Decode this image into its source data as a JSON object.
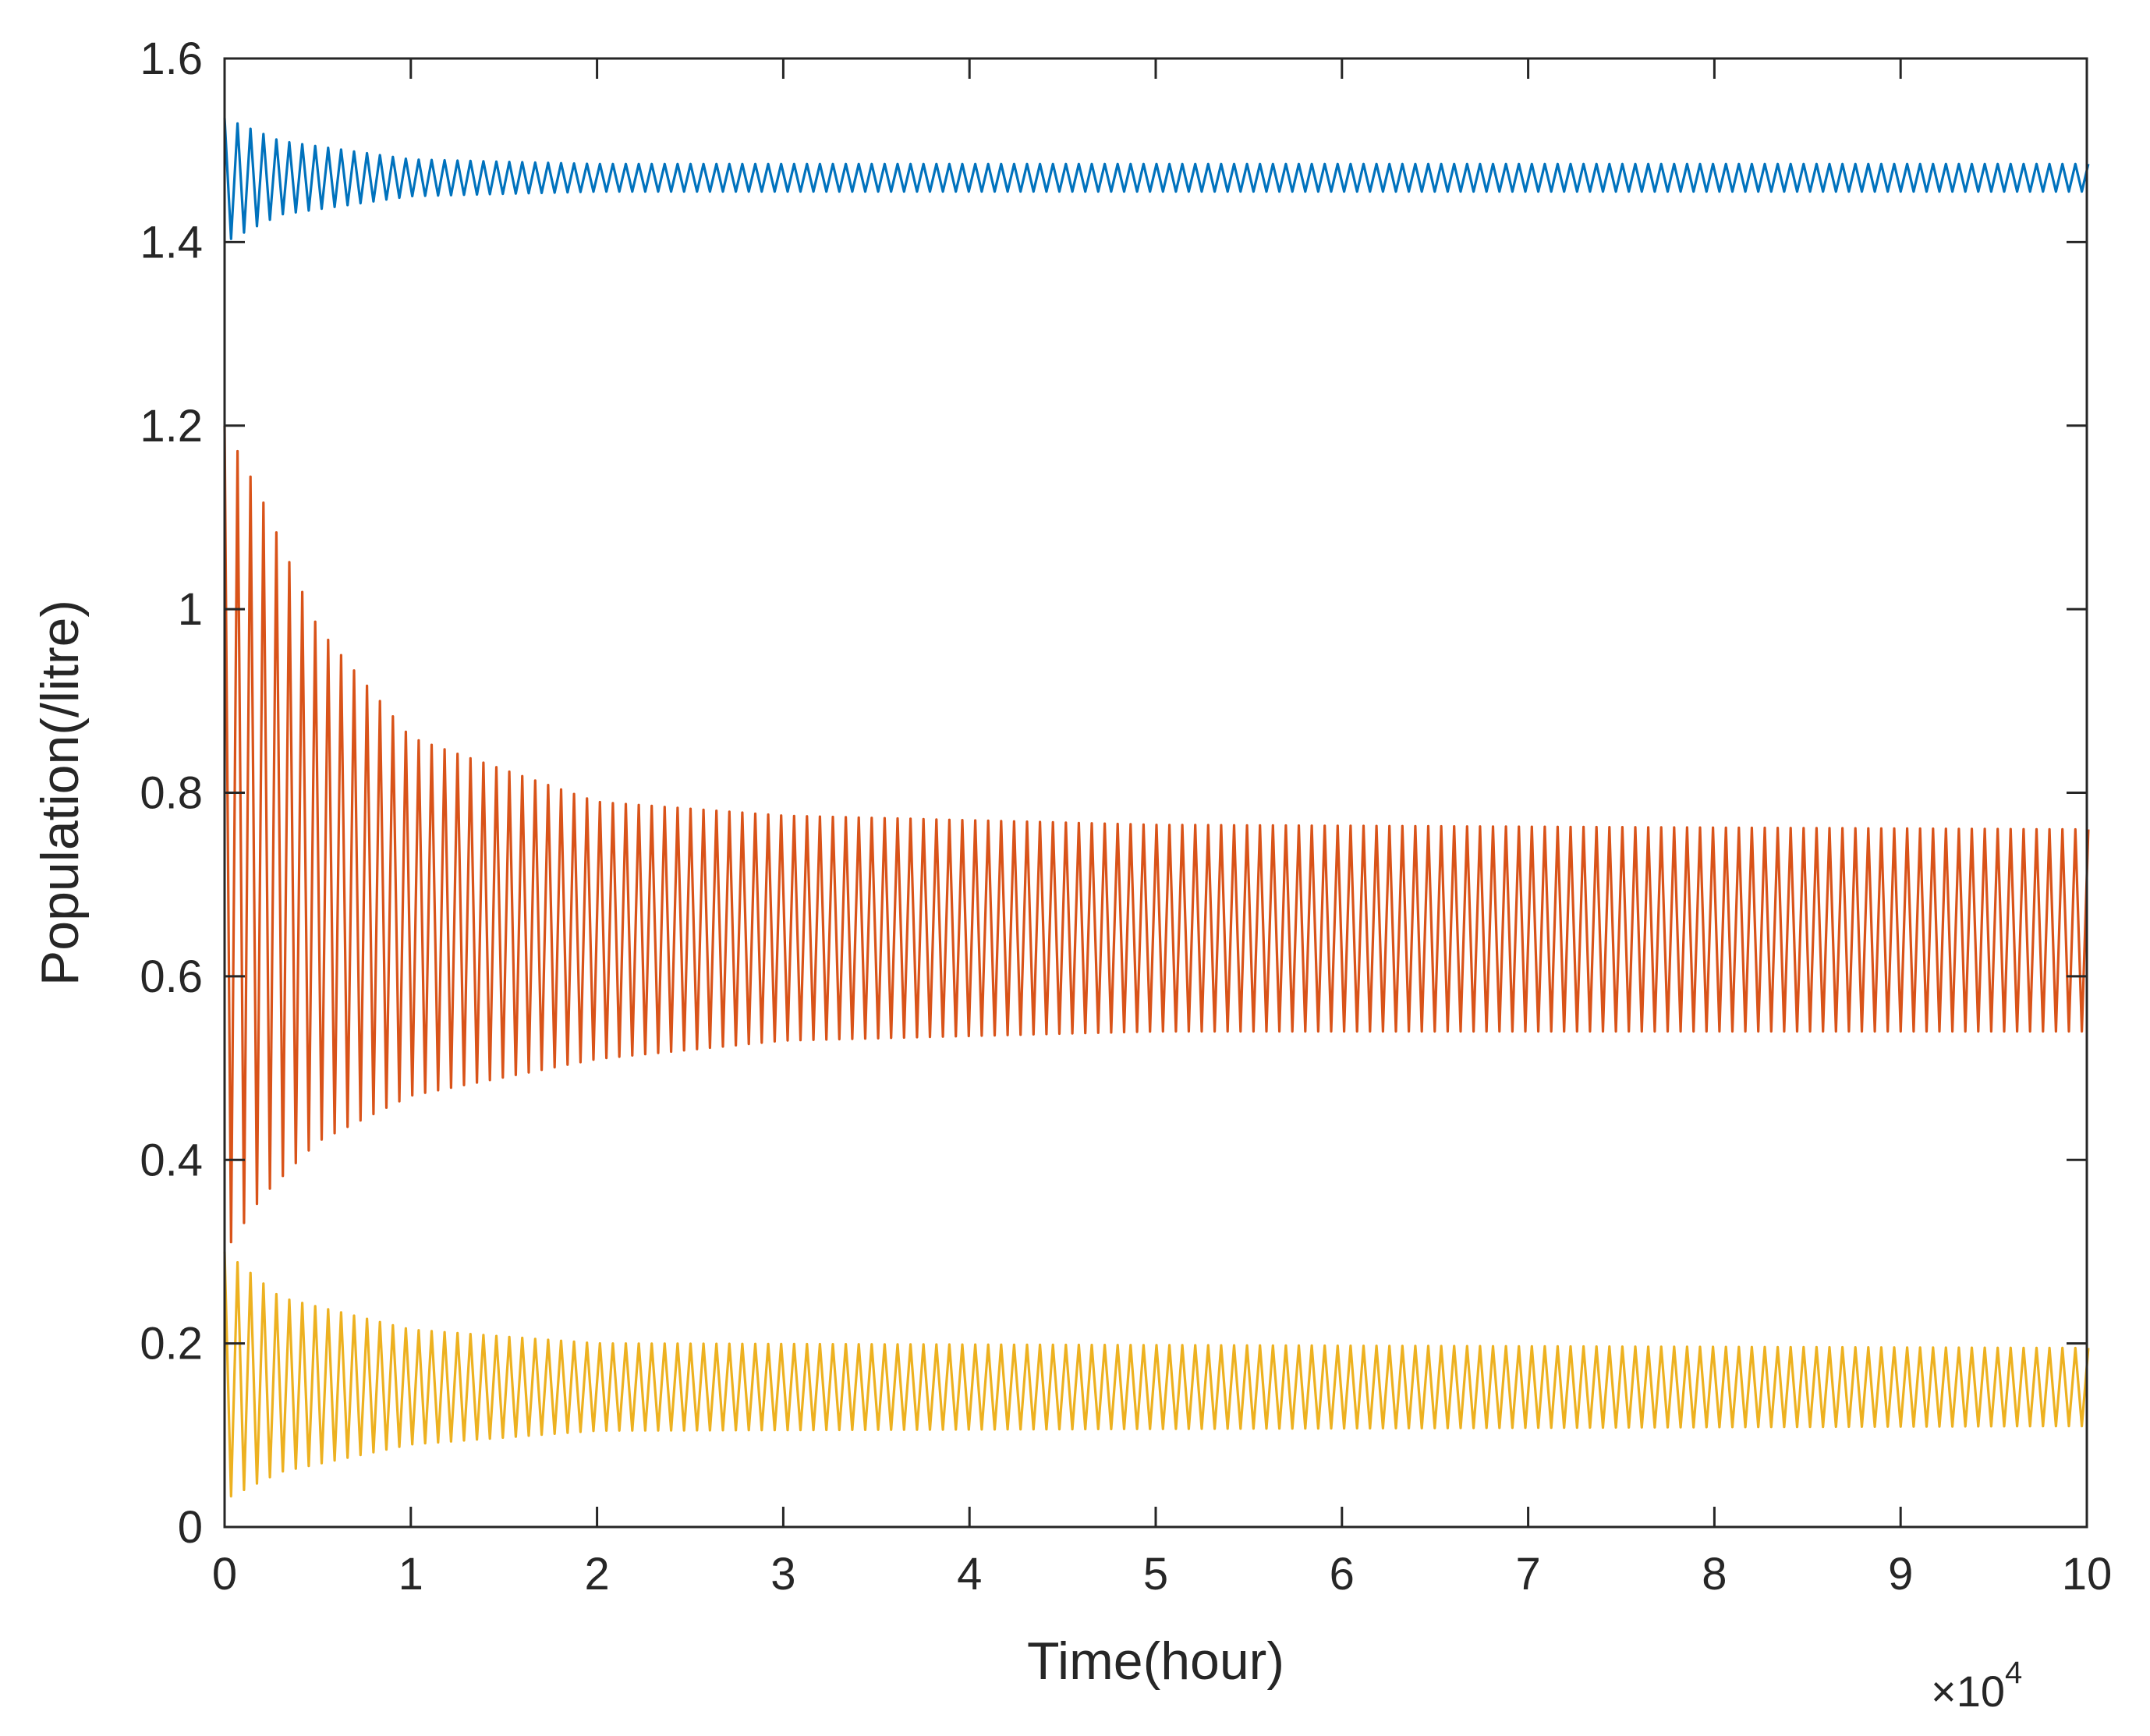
{
  "chart_data": {
    "type": "line",
    "title": "",
    "xlabel": "Time(hour)",
    "ylabel": "Population(/litre)",
    "x_exponent_label": {
      "base": "×10",
      "exp": "4"
    },
    "xlim": [
      0,
      10
    ],
    "ylim": [
      0,
      1.6
    ],
    "xticks": [
      0,
      1,
      2,
      3,
      4,
      5,
      6,
      7,
      8,
      9,
      10
    ],
    "yticks": [
      0,
      0.2,
      0.4,
      0.6,
      0.8,
      1,
      1.2,
      1.4,
      1.6
    ],
    "ytick_labels": [
      "0",
      "0.2",
      "0.4",
      "0.6",
      "0.8",
      "1",
      "1.2",
      "1.4",
      "1.6"
    ],
    "grid": false,
    "legend": "none",
    "series": [
      {
        "color": "#0072BD",
        "period": 0.0695,
        "envelope": [
          {
            "x": 0,
            "min": 1.4,
            "max": 1.535
          },
          {
            "x": 0.3,
            "min": 1.43,
            "max": 1.51
          },
          {
            "x": 1,
            "min": 1.45,
            "max": 1.49
          },
          {
            "x": 2,
            "min": 1.455,
            "max": 1.485
          },
          {
            "x": 10,
            "min": 1.455,
            "max": 1.485
          }
        ]
      },
      {
        "color": "#D95319",
        "period": 0.0695,
        "envelope": [
          {
            "x": 0,
            "min": 0.3,
            "max": 1.2
          },
          {
            "x": 0.2,
            "min": 0.36,
            "max": 1.12
          },
          {
            "x": 0.5,
            "min": 0.42,
            "max": 0.98
          },
          {
            "x": 1,
            "min": 0.47,
            "max": 0.86
          },
          {
            "x": 2,
            "min": 0.51,
            "max": 0.79
          },
          {
            "x": 3,
            "min": 0.53,
            "max": 0.775
          },
          {
            "x": 5,
            "min": 0.54,
            "max": 0.765
          },
          {
            "x": 10,
            "min": 0.54,
            "max": 0.76
          }
        ]
      },
      {
        "color": "#EDB120",
        "period": 0.0695,
        "envelope": [
          {
            "x": 0,
            "min": 0.03,
            "max": 0.3
          },
          {
            "x": 0.3,
            "min": 0.06,
            "max": 0.25
          },
          {
            "x": 1,
            "min": 0.09,
            "max": 0.215
          },
          {
            "x": 2,
            "min": 0.105,
            "max": 0.2
          },
          {
            "x": 10,
            "min": 0.11,
            "max": 0.195
          }
        ]
      }
    ]
  }
}
